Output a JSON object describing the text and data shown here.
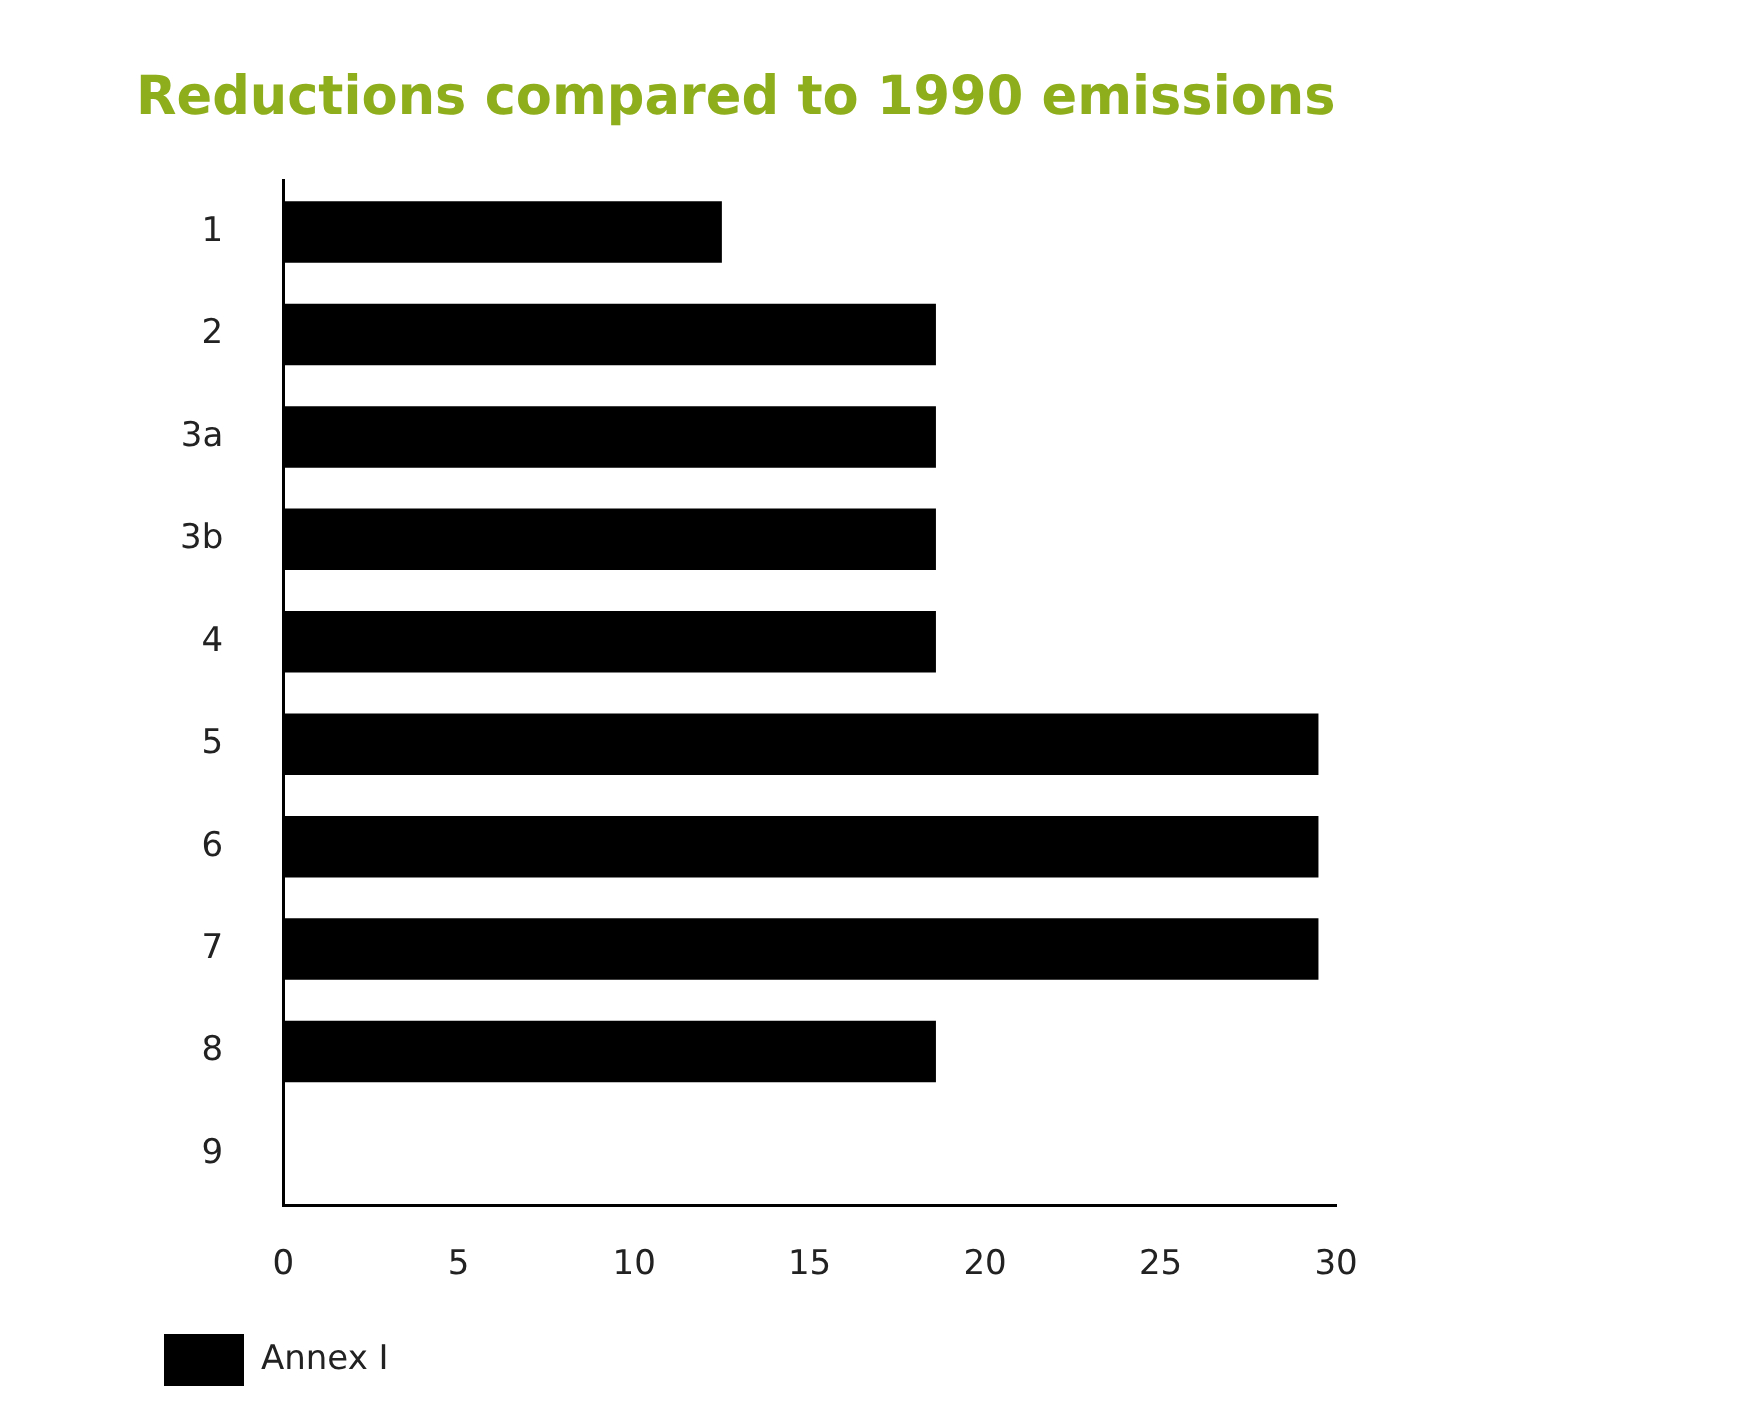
{
  "chart_data": {
    "type": "bar",
    "orientation": "horizontal",
    "title": "Reductions compared to 1990 emissions",
    "categories": [
      "1",
      "2",
      "3a",
      "3b",
      "4",
      "5",
      "6",
      "7",
      "8",
      "9"
    ],
    "series": [
      {
        "name": "Annex I",
        "color": "#000000",
        "values": [
          12.5,
          18.6,
          18.6,
          18.6,
          18.6,
          29.5,
          29.5,
          29.5,
          18.6,
          null
        ]
      }
    ],
    "xlim": [
      0,
      30
    ],
    "xticks": [
      0,
      5,
      10,
      15,
      20,
      25,
      30
    ],
    "grid": false,
    "legend": "bottom left"
  }
}
